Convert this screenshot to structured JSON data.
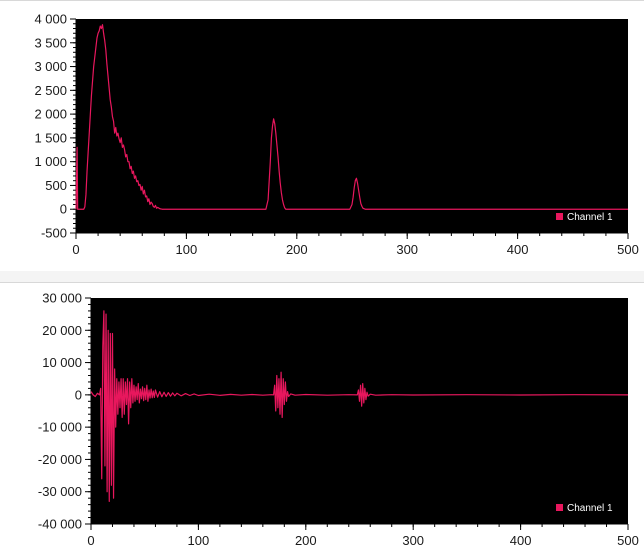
{
  "colors": {
    "plot_background": "#000000",
    "series": "#e8175d",
    "axis": "#000000"
  },
  "chart_data": [
    {
      "type": "line",
      "title": "",
      "xlabel": "",
      "ylabel": "",
      "xlim": [
        0,
        500
      ],
      "ylim": [
        -500,
        4000
      ],
      "x_ticks": [
        0,
        100,
        200,
        300,
        400,
        500
      ],
      "x_tick_labels": [
        "0",
        "100",
        "200",
        "300",
        "400",
        "500"
      ],
      "y_ticks": [
        -500,
        0,
        500,
        1000,
        1500,
        2000,
        2500,
        3000,
        3500,
        4000
      ],
      "y_tick_labels": [
        "-500",
        "0",
        "500",
        "1 000",
        "1 500",
        "2 000",
        "2 500",
        "3 000",
        "3 500",
        "4 000"
      ],
      "grid": false,
      "legend_position": "bottom-right",
      "series": [
        {
          "name": "Channel 1",
          "color": "#e8175d",
          "points": [
            [
              0,
              0
            ],
            [
              1,
              1300
            ],
            [
              1.5,
              0
            ],
            [
              3,
              0
            ],
            [
              5,
              0
            ],
            [
              7,
              0
            ],
            [
              8,
              50
            ],
            [
              9,
              300
            ],
            [
              10,
              800
            ],
            [
              11,
              1200
            ],
            [
              12,
              1600
            ],
            [
              13,
              2000
            ],
            [
              14,
              2400
            ],
            [
              15,
              2700
            ],
            [
              16,
              3000
            ],
            [
              17,
              3200
            ],
            [
              18,
              3400
            ],
            [
              19,
              3600
            ],
            [
              20,
              3700
            ],
            [
              21,
              3750
            ],
            [
              22,
              3850
            ],
            [
              23,
              3800
            ],
            [
              24,
              3880
            ],
            [
              25,
              3700
            ],
            [
              26,
              3550
            ],
            [
              27,
              3350
            ],
            [
              28,
              3050
            ],
            [
              29,
              2800
            ],
            [
              30,
              2550
            ],
            [
              31,
              2300
            ],
            [
              32,
              2150
            ],
            [
              33,
              1950
            ],
            [
              34,
              1850
            ],
            [
              35,
              1600
            ],
            [
              36,
              1720
            ],
            [
              37,
              1540
            ],
            [
              38,
              1600
            ],
            [
              39,
              1480
            ],
            [
              40,
              1400
            ],
            [
              41,
              1500
            ],
            [
              42,
              1300
            ],
            [
              43,
              1350
            ],
            [
              44,
              1250
            ],
            [
              45,
              1100
            ],
            [
              46,
              1150
            ],
            [
              47,
              1000
            ],
            [
              48,
              1000
            ],
            [
              49,
              850
            ],
            [
              50,
              900
            ],
            [
              51,
              750
            ],
            [
              52,
              800
            ],
            [
              53,
              650
            ],
            [
              54,
              700
            ],
            [
              55,
              580
            ],
            [
              56,
              600
            ],
            [
              57,
              500
            ],
            [
              58,
              520
            ],
            [
              59,
              400
            ],
            [
              60,
              480
            ],
            [
              61,
              320
            ],
            [
              62,
              400
            ],
            [
              63,
              260
            ],
            [
              64,
              280
            ],
            [
              65,
              160
            ],
            [
              66,
              220
            ],
            [
              67,
              100
            ],
            [
              68,
              150
            ],
            [
              69,
              120
            ],
            [
              70,
              60
            ],
            [
              71,
              40
            ],
            [
              72,
              80
            ],
            [
              73,
              20
            ],
            [
              74,
              40
            ],
            [
              76,
              10
            ],
            [
              78,
              0
            ],
            [
              80,
              0
            ],
            [
              100,
              0
            ],
            [
              150,
              0
            ],
            [
              170,
              0
            ],
            [
              172,
              0
            ],
            [
              174,
              200
            ],
            [
              175,
              600
            ],
            [
              176,
              1000
            ],
            [
              177,
              1500
            ],
            [
              178,
              1750
            ],
            [
              179,
              1900
            ],
            [
              180,
              1800
            ],
            [
              181,
              1600
            ],
            [
              182,
              1350
            ],
            [
              183,
              1100
            ],
            [
              184,
              800
            ],
            [
              185,
              550
            ],
            [
              186,
              350
            ],
            [
              187,
              200
            ],
            [
              188,
              100
            ],
            [
              189,
              30
            ],
            [
              190,
              0
            ],
            [
              195,
              0
            ],
            [
              230,
              0
            ],
            [
              248,
              0
            ],
            [
              250,
              100
            ],
            [
              251,
              250
            ],
            [
              252,
              450
            ],
            [
              253,
              600
            ],
            [
              254,
              650
            ],
            [
              255,
              550
            ],
            [
              256,
              400
            ],
            [
              257,
              250
            ],
            [
              258,
              120
            ],
            [
              259,
              60
            ],
            [
              260,
              20
            ],
            [
              262,
              0
            ],
            [
              300,
              0
            ],
            [
              400,
              0
            ],
            [
              500,
              0
            ]
          ]
        }
      ]
    },
    {
      "type": "line",
      "title": "",
      "xlabel": "",
      "ylabel": "",
      "xlim": [
        0,
        500
      ],
      "ylim": [
        -40000,
        30000
      ],
      "x_ticks": [
        0,
        100,
        200,
        300,
        400,
        500
      ],
      "x_tick_labels": [
        "0",
        "100",
        "200",
        "300",
        "400",
        "500"
      ],
      "y_ticks": [
        -40000,
        -30000,
        -20000,
        -10000,
        0,
        10000,
        20000,
        30000
      ],
      "y_tick_labels": [
        "-40 000",
        "-30 000",
        "-20 000",
        "-10 000",
        "0",
        "10 000",
        "20 000",
        "30 000"
      ],
      "grid": false,
      "legend_position": "bottom-right",
      "series": [
        {
          "name": "Channel 1",
          "color": "#e8175d",
          "points": [
            [
              0,
              1000
            ],
            [
              2,
              0
            ],
            [
              4,
              -500
            ],
            [
              6,
              500
            ],
            [
              8,
              0
            ],
            [
              9,
              2000
            ],
            [
              10,
              -26000
            ],
            [
              11,
              15000
            ],
            [
              12,
              26000
            ],
            [
              13,
              -22000
            ],
            [
              14,
              25000
            ],
            [
              15,
              -30000
            ],
            [
              16,
              20000
            ],
            [
              17,
              -33000
            ],
            [
              18,
              19000
            ],
            [
              19,
              -28000
            ],
            [
              20,
              19000
            ],
            [
              21,
              -32000
            ],
            [
              22,
              8000
            ],
            [
              23,
              -10000
            ],
            [
              24,
              5000
            ],
            [
              25,
              -6000
            ],
            [
              26,
              4000
            ],
            [
              27,
              -4000
            ],
            [
              28,
              5000
            ],
            [
              29,
              -7000
            ],
            [
              30,
              5000
            ],
            [
              31,
              -6000
            ],
            [
              32,
              4000
            ],
            [
              33,
              -3000
            ],
            [
              34,
              5000
            ],
            [
              35,
              -9000
            ],
            [
              36,
              4000
            ],
            [
              37,
              -4000
            ],
            [
              38,
              5000
            ],
            [
              39,
              -2500
            ],
            [
              40,
              3000
            ],
            [
              41,
              -2000
            ],
            [
              42,
              2500
            ],
            [
              43,
              -1500
            ],
            [
              44,
              3500
            ],
            [
              45,
              -2500
            ],
            [
              46,
              1800
            ],
            [
              47,
              -1200
            ],
            [
              48,
              2500
            ],
            [
              49,
              -1800
            ],
            [
              50,
              2000
            ],
            [
              51,
              -1500
            ],
            [
              52,
              3000
            ],
            [
              53,
              -2000
            ],
            [
              54,
              1500
            ],
            [
              55,
              -1000
            ],
            [
              56,
              1800
            ],
            [
              57,
              -900
            ],
            [
              58,
              1200
            ],
            [
              59,
              -800
            ],
            [
              60,
              1500
            ],
            [
              62,
              -700
            ],
            [
              64,
              1000
            ],
            [
              66,
              -600
            ],
            [
              68,
              800
            ],
            [
              70,
              -500
            ],
            [
              72,
              700
            ],
            [
              74,
              -400
            ],
            [
              76,
              600
            ],
            [
              78,
              -300
            ],
            [
              80,
              500
            ],
            [
              84,
              -300
            ],
            [
              88,
              400
            ],
            [
              92,
              -200
            ],
            [
              96,
              300
            ],
            [
              100,
              -200
            ],
            [
              110,
              200
            ],
            [
              120,
              -150
            ],
            [
              130,
              150
            ],
            [
              140,
              -100
            ],
            [
              150,
              100
            ],
            [
              160,
              -100
            ],
            [
              168,
              50
            ],
            [
              170,
              0
            ],
            [
              171,
              3000
            ],
            [
              172,
              -5000
            ],
            [
              173,
              6000
            ],
            [
              174,
              -4000
            ],
            [
              175,
              5000
            ],
            [
              176,
              -6000
            ],
            [
              177,
              7000
            ],
            [
              178,
              -7000
            ],
            [
              179,
              5000
            ],
            [
              180,
              -3000
            ],
            [
              181,
              4000
            ],
            [
              182,
              -2000
            ],
            [
              183,
              1000
            ],
            [
              184,
              -500
            ],
            [
              186,
              300
            ],
            [
              190,
              -100
            ],
            [
              200,
              100
            ],
            [
              220,
              -100
            ],
            [
              240,
              50
            ],
            [
              248,
              0
            ],
            [
              249,
              1500
            ],
            [
              250,
              -2000
            ],
            [
              251,
              3000
            ],
            [
              252,
              -3500
            ],
            [
              253,
              3500
            ],
            [
              254,
              -2500
            ],
            [
              255,
              2000
            ],
            [
              256,
              -1500
            ],
            [
              257,
              800
            ],
            [
              258,
              -400
            ],
            [
              260,
              200
            ],
            [
              265,
              -100
            ],
            [
              280,
              50
            ],
            [
              300,
              -50
            ],
            [
              350,
              50
            ],
            [
              400,
              -50
            ],
            [
              450,
              50
            ],
            [
              500,
              0
            ]
          ]
        }
      ]
    }
  ]
}
